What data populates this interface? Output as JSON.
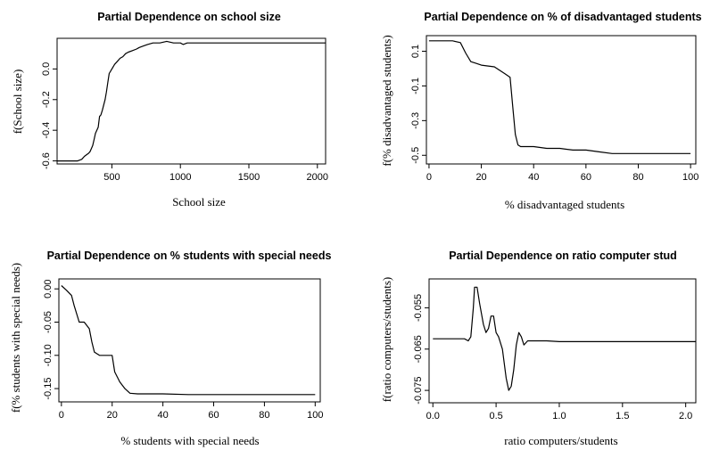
{
  "chart_data": [
    {
      "type": "line",
      "title": "Partial Dependence on school size",
      "xlabel": "School size",
      "ylabel": "f(School size)",
      "xlim": [
        100,
        2060
      ],
      "ylim": [
        -0.62,
        0.2
      ],
      "xticks": [
        500,
        1000,
        1500,
        2000
      ],
      "xtick_labels": [
        "500",
        "1000",
        "1500",
        "2000"
      ],
      "yticks": [
        -0.6,
        -0.4,
        -0.2,
        0.0
      ],
      "ytick_labels": [
        "-0.6",
        "-0.4",
        "-0.2",
        "0.0"
      ],
      "x": [
        100,
        250,
        280,
        300,
        330,
        340,
        360,
        370,
        380,
        400,
        410,
        420,
        430,
        450,
        460,
        470,
        480,
        500,
        520,
        540,
        560,
        580,
        600,
        620,
        650,
        680,
        700,
        730,
        760,
        800,
        850,
        900,
        950,
        1000,
        1020,
        1050,
        2060
      ],
      "y": [
        -0.6,
        -0.6,
        -0.59,
        -0.57,
        -0.55,
        -0.54,
        -0.5,
        -0.46,
        -0.42,
        -0.38,
        -0.31,
        -0.3,
        -0.27,
        -0.2,
        -0.15,
        -0.09,
        -0.03,
        0.0,
        0.03,
        0.05,
        0.07,
        0.08,
        0.1,
        0.11,
        0.12,
        0.13,
        0.14,
        0.15,
        0.16,
        0.17,
        0.17,
        0.18,
        0.17,
        0.17,
        0.16,
        0.17,
        0.17
      ]
    },
    {
      "type": "line",
      "title": "Partial Dependence on % of disadvantaged students",
      "xlabel": "% disadvantaged students",
      "ylabel": "f(% disadvantaged students)",
      "xlim": [
        -1,
        102
      ],
      "ylim": [
        -0.55,
        0.19
      ],
      "xticks": [
        0,
        20,
        40,
        60,
        80,
        100
      ],
      "xtick_labels": [
        "0",
        "20",
        "40",
        "60",
        "80",
        "100"
      ],
      "yticks": [
        -0.5,
        -0.3,
        -0.1,
        0.1
      ],
      "ytick_labels": [
        "-0.5",
        "-0.3",
        "-0.1",
        "0.1"
      ],
      "x": [
        0,
        9,
        12,
        14,
        16,
        18,
        20,
        25,
        27,
        29,
        31,
        32,
        33,
        34,
        35,
        40,
        45,
        50,
        55,
        60,
        65,
        70,
        100
      ],
      "y": [
        0.16,
        0.16,
        0.15,
        0.09,
        0.04,
        0.03,
        0.02,
        0.01,
        -0.01,
        -0.03,
        -0.05,
        -0.22,
        -0.38,
        -0.44,
        -0.45,
        -0.45,
        -0.46,
        -0.46,
        -0.47,
        -0.47,
        -0.48,
        -0.49,
        -0.49
      ]
    },
    {
      "type": "line",
      "title": "Partial Dependence on % students with special needs",
      "xlabel": "% students with special needs",
      "ylabel": "f(% students with special needs)",
      "xlim": [
        -1,
        102
      ],
      "ylim": [
        -0.17,
        0.015
      ],
      "xticks": [
        0,
        20,
        40,
        60,
        80,
        100
      ],
      "xtick_labels": [
        "0",
        "20",
        "40",
        "60",
        "80",
        "100"
      ],
      "yticks": [
        -0.15,
        -0.1,
        -0.05,
        0.0
      ],
      "ytick_labels": [
        "-0.15",
        "-0.10",
        "-0.05",
        "0.00"
      ],
      "x": [
        0,
        2,
        4,
        5,
        7,
        9,
        11,
        12,
        13,
        15,
        17,
        20,
        21,
        23,
        25,
        27,
        30,
        40,
        50,
        100
      ],
      "y": [
        0.005,
        -0.002,
        -0.01,
        -0.025,
        -0.05,
        -0.05,
        -0.06,
        -0.08,
        -0.095,
        -0.1,
        -0.1,
        -0.1,
        -0.125,
        -0.14,
        -0.15,
        -0.157,
        -0.158,
        -0.158,
        -0.159,
        -0.159
      ]
    },
    {
      "type": "line",
      "title": "Partial Dependence on ratio computer stud",
      "xlabel": "ratio computers/students",
      "ylabel": "f(ratio computers/students)",
      "xlim": [
        -0.03,
        2.08
      ],
      "ylim": [
        -0.078,
        -0.048
      ],
      "xticks": [
        0.0,
        0.5,
        1.0,
        1.5,
        2.0
      ],
      "xtick_labels": [
        "0.0",
        "0.5",
        "1.0",
        "1.5",
        "2.0"
      ],
      "yticks": [
        -0.075,
        -0.065,
        -0.055
      ],
      "ytick_labels": [
        "-0.075",
        "-0.065",
        "-0.055"
      ],
      "x": [
        0.0,
        0.25,
        0.28,
        0.3,
        0.32,
        0.33,
        0.35,
        0.37,
        0.4,
        0.42,
        0.44,
        0.46,
        0.48,
        0.5,
        0.52,
        0.55,
        0.58,
        0.6,
        0.62,
        0.64,
        0.66,
        0.68,
        0.7,
        0.72,
        0.75,
        0.8,
        0.9,
        1.0,
        2.08
      ],
      "y": [
        -0.0625,
        -0.0625,
        -0.063,
        -0.062,
        -0.055,
        -0.05,
        -0.05,
        -0.054,
        -0.059,
        -0.061,
        -0.06,
        -0.057,
        -0.057,
        -0.061,
        -0.062,
        -0.065,
        -0.072,
        -0.075,
        -0.074,
        -0.07,
        -0.064,
        -0.061,
        -0.062,
        -0.064,
        -0.063,
        -0.063,
        -0.063,
        -0.0632,
        -0.0632
      ]
    }
  ]
}
